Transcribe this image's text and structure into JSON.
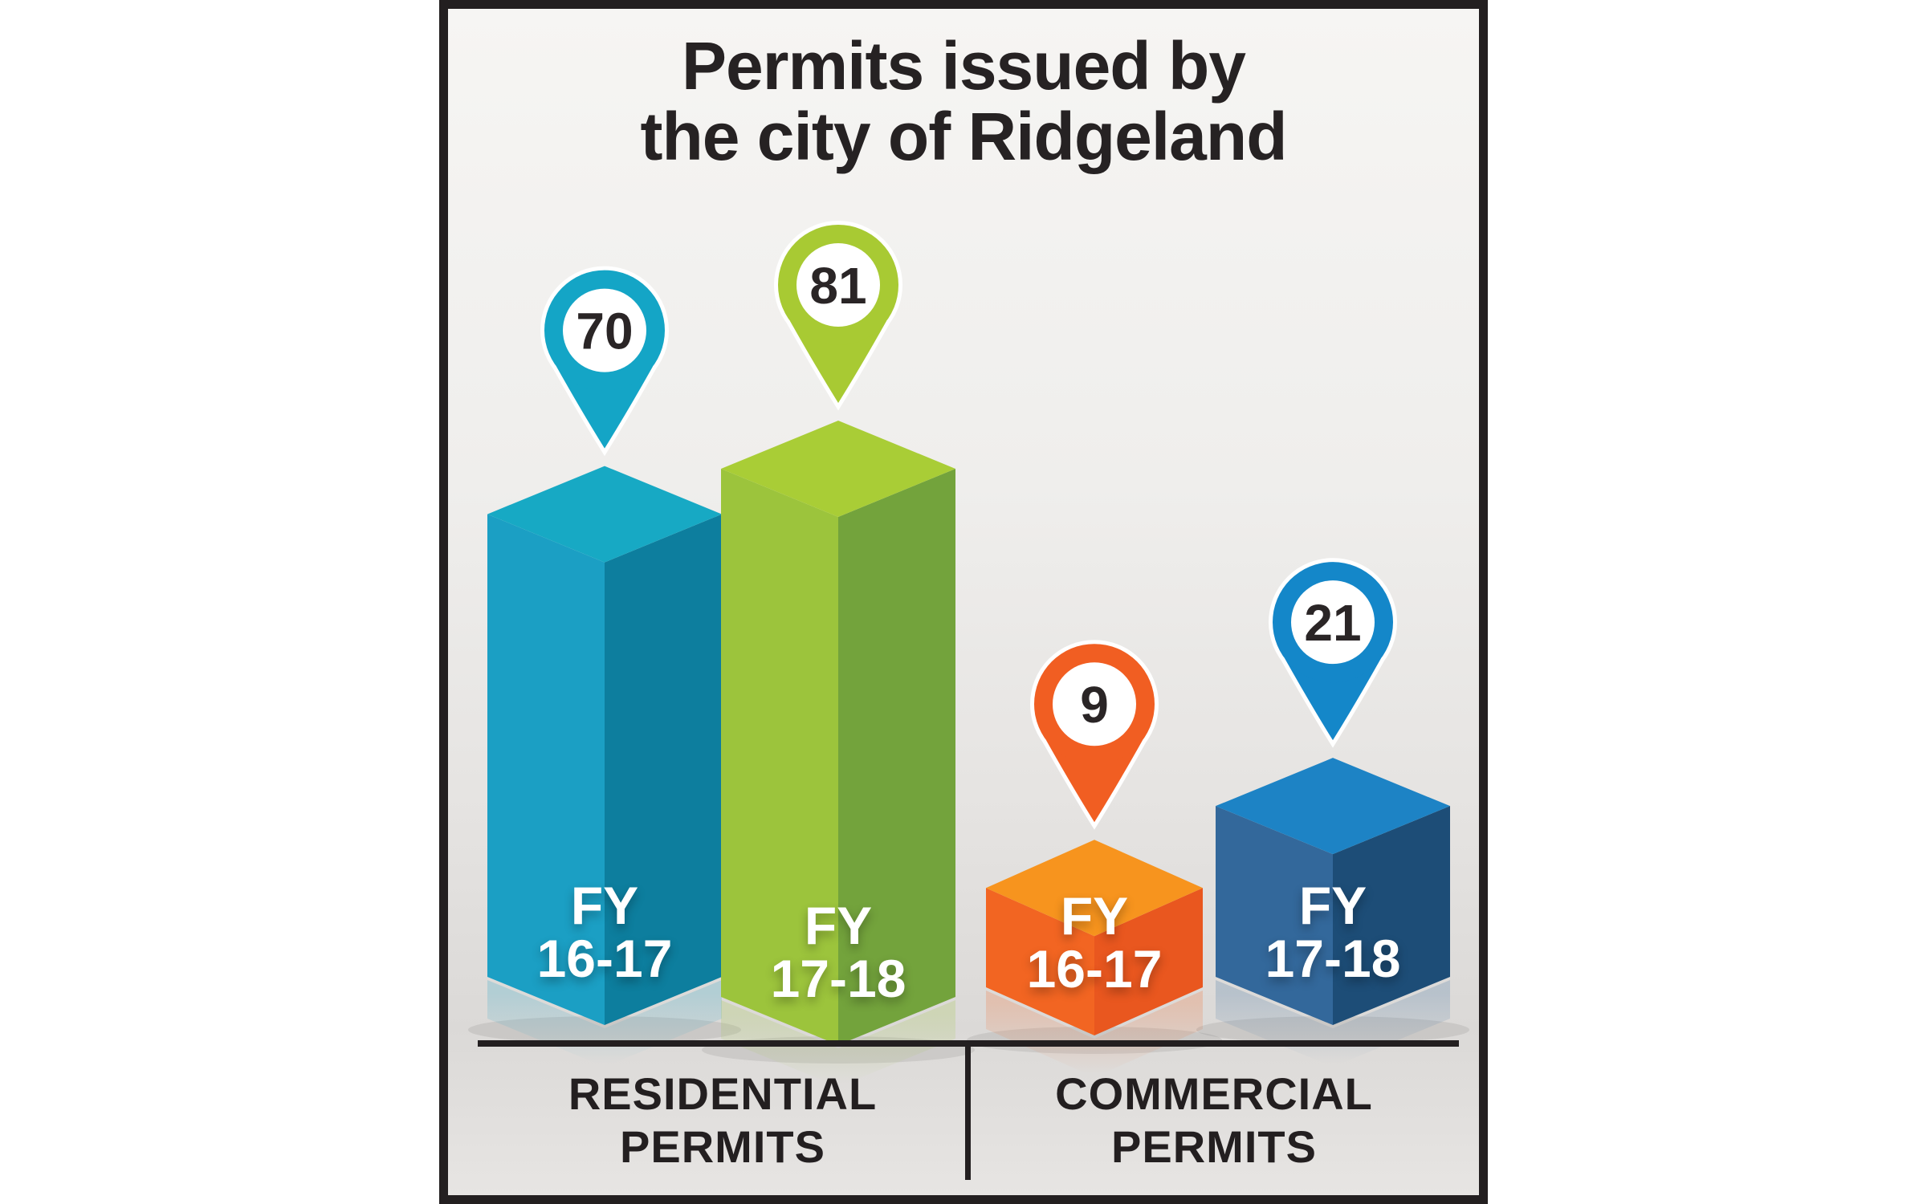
{
  "page": {
    "background": "#ffffff",
    "panel_border_color": "#231f20",
    "panel_background_top": "#f6f5f3",
    "panel_background_bottom": "#e7e5e3",
    "text_color": "#231f20"
  },
  "title": {
    "line1": "Permits issued by",
    "line2": "the city of Ridgeland"
  },
  "sections": [
    {
      "label_lines": [
        "RESIDENTIAL",
        "PERMITS"
      ]
    },
    {
      "label_lines": [
        "COMMERCIAL",
        "PERMITS"
      ]
    }
  ],
  "chart_data": {
    "type": "bar",
    "style": "isometric 3D columns with map-pin value callouts",
    "title": "Permits issued by the city of Ridgeland",
    "groups": [
      "RESIDENTIAL PERMITS",
      "COMMERCIAL PERMITS"
    ],
    "categories": [
      "FY 16-17",
      "FY 17-18"
    ],
    "legend": "none",
    "axes": "none (values shown in pin markers above each column)",
    "bars": [
      {
        "group": "RESIDENTIAL PERMITS",
        "category": "FY 16-17",
        "label_lines": [
          "FY",
          "16-17"
        ],
        "value": 70,
        "colors": {
          "top": "#17a9c4",
          "left": "#1b9fc4",
          "right": "#0d7e9e",
          "pin": "#14a5c6"
        }
      },
      {
        "group": "RESIDENTIAL PERMITS",
        "category": "FY 17-18",
        "label_lines": [
          "FY",
          "17-18"
        ],
        "value": 81,
        "colors": {
          "top": "#a9cd36",
          "left": "#9cc43c",
          "right": "#73a33c",
          "pin": "#a8ca33"
        }
      },
      {
        "group": "COMMERCIAL PERMITS",
        "category": "FY 16-17",
        "label_lines": [
          "FY",
          "16-17"
        ],
        "value": 9,
        "colors": {
          "top": "#f7941e",
          "left": "#f26522",
          "right": "#e9571f",
          "pin": "#f15e22"
        }
      },
      {
        "group": "COMMERCIAL PERMITS",
        "category": "FY 17-18",
        "label_lines": [
          "FY",
          "17-18"
        ],
        "value": 21,
        "colors": {
          "top": "#1d83c5",
          "left": "#33689b",
          "right": "#1d4d77",
          "pin": "#1487c9"
        }
      }
    ],
    "values": [
      70,
      81,
      9,
      21
    ]
  }
}
